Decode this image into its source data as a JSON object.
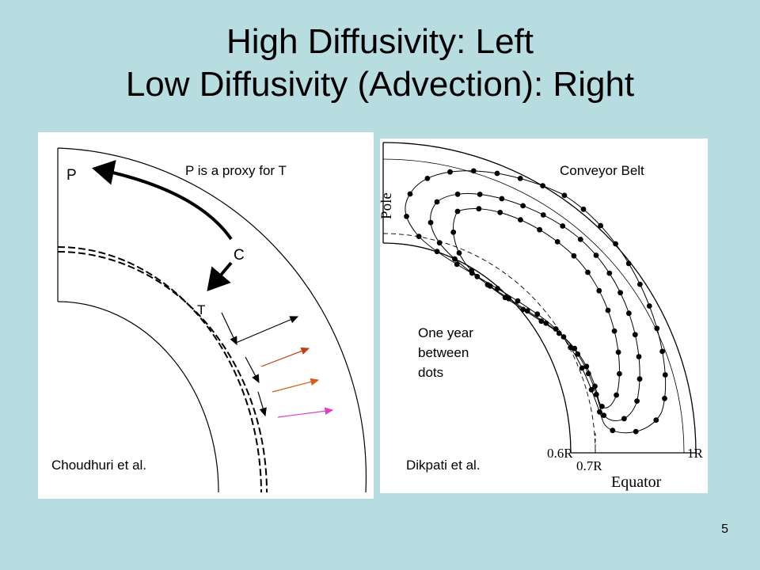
{
  "slide": {
    "title_line1": "High Diffusivity: Left",
    "title_line2": "Low Diffusivity (Advection): Right",
    "number": "5"
  },
  "left_figure": {
    "caption_top": "P is a proxy for T",
    "caption_bottom": "Choudhuri et al.",
    "labels": {
      "p": "P",
      "c": "C",
      "t": "T"
    },
    "arrow_colors": [
      "#000000",
      "#c0401a",
      "#d45f15",
      "#e040c8"
    ]
  },
  "right_figure": {
    "caption_top": "Conveyor Belt",
    "caption_middle": [
      "One year",
      "between",
      "dots"
    ],
    "caption_bottom": "Dikpati et al.",
    "axis_labels": {
      "pole": "Pole",
      "equator": "Equator",
      "tick_06": "0.6R",
      "tick_07": "0.7R",
      "tick_1": "1R"
    }
  }
}
